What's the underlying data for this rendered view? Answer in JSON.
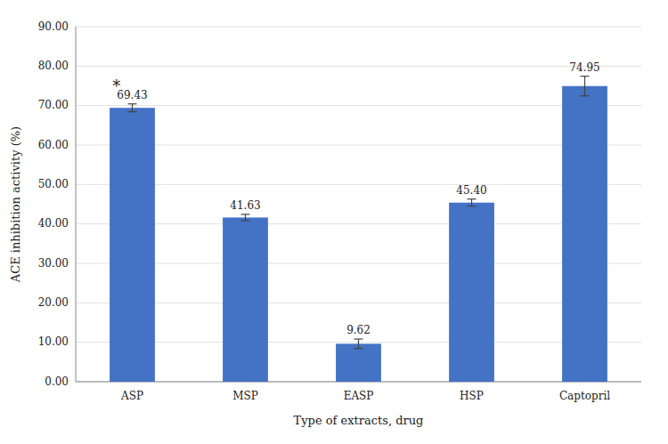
{
  "chart_data": {
    "type": "bar",
    "categories": [
      "ASP",
      "MSP",
      "EASP",
      "HSP",
      "Captopril"
    ],
    "values": [
      69.43,
      41.63,
      9.62,
      45.4,
      74.95
    ],
    "errors": [
      1.0,
      0.8,
      1.2,
      0.9,
      2.5
    ],
    "value_labels": [
      "69.43",
      "41.63",
      "9.62",
      "45.40",
      "74.95"
    ],
    "data_labels": true,
    "color": "#4472C4",
    "xlabel": "Type of extracts, drug",
    "ylabel": "ACE inhibition activity (%)",
    "ylim": [
      0,
      90
    ],
    "yticks": [
      {
        "value": 0,
        "label": "0.00"
      },
      {
        "value": 10,
        "label": "10.00"
      },
      {
        "value": 20,
        "label": "20.00"
      },
      {
        "value": 30,
        "label": "30.00"
      },
      {
        "value": 40,
        "label": "40.00"
      },
      {
        "value": 50,
        "label": "50.00"
      },
      {
        "value": 60,
        "label": "60.00"
      },
      {
        "value": 70,
        "label": "70.00"
      },
      {
        "value": 80,
        "label": "80.00"
      },
      {
        "value": 90,
        "label": "90.00"
      }
    ],
    "grid": true,
    "annotations": [
      {
        "text": "*",
        "category": "ASP"
      }
    ]
  }
}
